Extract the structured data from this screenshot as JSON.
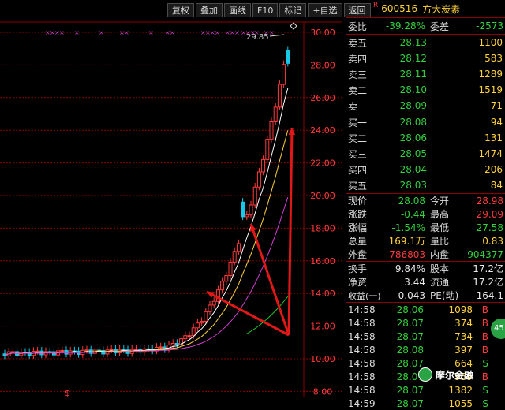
{
  "toolbar": [
    "复权",
    "叠加",
    "画线",
    "F10",
    "标记",
    "+自选",
    "返回"
  ],
  "chart": {
    "price_axis": [
      "30.00",
      "28.00",
      "26.00",
      "24.00",
      "22.00",
      "20.00",
      "18.00",
      "16.00",
      "14.00",
      "12.00",
      "10.00",
      "8.00"
    ],
    "high_label": "29.85",
    "bottom_marker": "$",
    "colors": {
      "up": "#ff3b3b",
      "down": "#18c8e8",
      "ma5": "#ffffff",
      "ma10": "#ffd23a",
      "ma20": "#d23fd2",
      "ma60": "#22c22a",
      "annotation": "#e01818",
      "marker": "#c040c0"
    }
  },
  "stock": {
    "mark": "R",
    "code": "600516",
    "name": "方大炭素"
  },
  "summary": {
    "ratio_label": "委比",
    "ratio_value": "-39.28%",
    "diff_label": "委差",
    "diff_value": "-2573"
  },
  "asks": [
    {
      "label": "卖五",
      "price": "28.13",
      "vol": "1100"
    },
    {
      "label": "卖四",
      "price": "28.12",
      "vol": "583"
    },
    {
      "label": "卖三",
      "price": "28.11",
      "vol": "1289"
    },
    {
      "label": "卖二",
      "price": "28.10",
      "vol": "1519"
    },
    {
      "label": "卖一",
      "price": "28.09",
      "vol": "71"
    }
  ],
  "bids": [
    {
      "label": "买一",
      "price": "28.08",
      "vol": "94"
    },
    {
      "label": "买二",
      "price": "28.06",
      "vol": "131"
    },
    {
      "label": "买三",
      "price": "28.05",
      "vol": "1474"
    },
    {
      "label": "买四",
      "price": "28.04",
      "vol": "206"
    },
    {
      "label": "买五",
      "price": "28.03",
      "vol": "84"
    }
  ],
  "quote": [
    {
      "l1": "现价",
      "v1": "28.08",
      "c1": "g",
      "l2": "今开",
      "v2": "28.98",
      "c2": "r"
    },
    {
      "l1": "涨跌",
      "v1": "-0.44",
      "c1": "g",
      "l2": "最高",
      "v2": "29.09",
      "c2": "r"
    },
    {
      "l1": "涨幅",
      "v1": "-1.54%",
      "c1": "g",
      "l2": "最低",
      "v2": "27.58",
      "c2": "g"
    },
    {
      "l1": "总量",
      "v1": "169.1万",
      "c1": "y",
      "l2": "量比",
      "v2": "0.83",
      "c2": "y"
    },
    {
      "l1": "外盘",
      "v1": "786803",
      "c1": "r",
      "l2": "内盘",
      "v2": "904377",
      "c2": "g"
    }
  ],
  "fundamentals": [
    {
      "l1": "换手",
      "v1": "9.84%",
      "l2": "股本",
      "v2": "17.2亿"
    },
    {
      "l1": "净资",
      "v1": "3.44",
      "l2": "流通",
      "v2": "17.2亿"
    },
    {
      "l1": "收益(一)",
      "v1": "0.043",
      "l2": "PE(动)",
      "v2": "164.1"
    }
  ],
  "ticks": [
    {
      "time": "14:58",
      "price": "28.06",
      "vol": "1098",
      "bs": "B",
      "c": "r"
    },
    {
      "time": "14:58",
      "price": "28.07",
      "vol": "374",
      "bs": "B",
      "c": "r"
    },
    {
      "time": "14:58",
      "price": "28.07",
      "vol": "734",
      "bs": "B",
      "c": "r"
    },
    {
      "time": "14:58",
      "price": "28.08",
      "vol": "397",
      "bs": "B",
      "c": "r"
    },
    {
      "time": "14:58",
      "price": "28.07",
      "vol": "664",
      "bs": "S",
      "c": "g"
    },
    {
      "time": "14:58",
      "price": "28.07",
      "vol": "959",
      "bs": "B",
      "c": "r"
    },
    {
      "time": "14:58",
      "price": "28.07",
      "vol": "1382",
      "bs": "S",
      "c": "g"
    },
    {
      "time": "14:59",
      "price": "28.07",
      "vol": "1055",
      "bs": "S",
      "c": "g"
    }
  ],
  "watermark": "摩尔金融",
  "side_badge": "45"
}
